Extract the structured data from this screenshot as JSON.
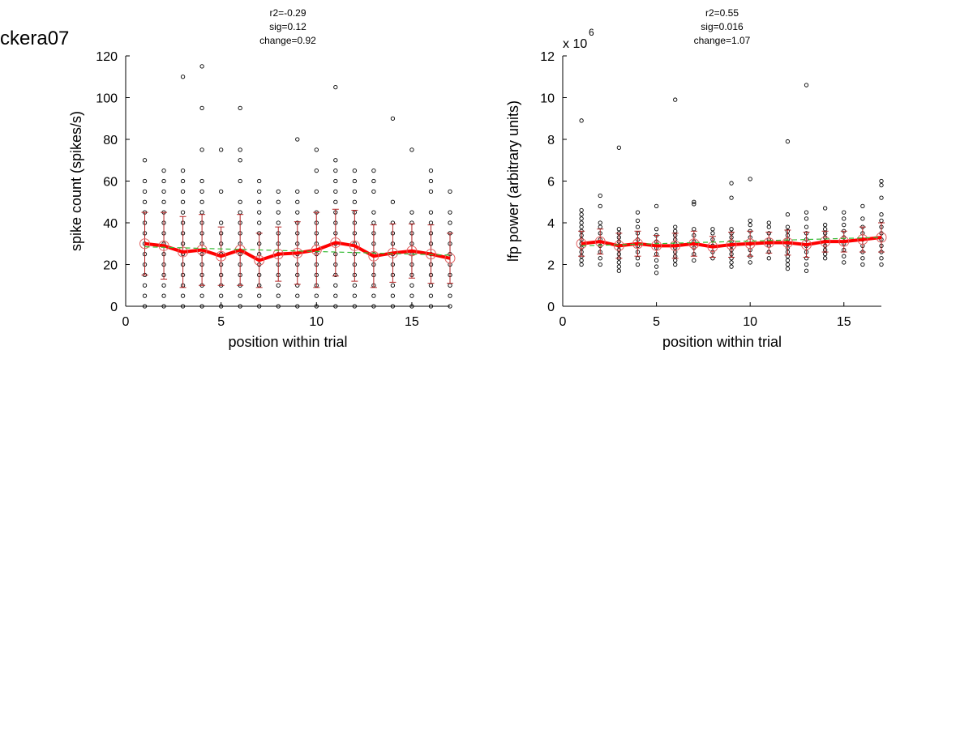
{
  "figure": {
    "title": "ckera07"
  },
  "chart_data": [
    {
      "type": "scatter",
      "stats": [
        "r2=-0.29",
        "sig=0.12",
        "change=0.92"
      ],
      "xlabel": "position within trial",
      "ylabel": "spike count (spikes/s)",
      "xlim": [
        0,
        17
      ],
      "ylim": [
        0,
        120
      ],
      "xticks": [
        0,
        5,
        10,
        15
      ],
      "yticks": [
        0,
        20,
        40,
        60,
        80,
        100,
        120
      ],
      "exponent_label": "",
      "grid": false,
      "colors": {
        "points": "#000000",
        "mean_line": "#ff0000",
        "error_bars": "#b22222",
        "fit": "#33bb33"
      },
      "points": {
        "1": [
          0,
          5,
          10,
          15,
          20,
          25,
          30,
          35,
          40,
          45,
          50,
          55,
          60,
          70
        ],
        "2": [
          0,
          5,
          10,
          15,
          20,
          25,
          30,
          35,
          40,
          45,
          50,
          55,
          60,
          65
        ],
        "3": [
          0,
          5,
          10,
          15,
          20,
          25,
          30,
          35,
          40,
          45,
          50,
          55,
          60,
          65,
          110
        ],
        "4": [
          0,
          5,
          10,
          15,
          20,
          25,
          30,
          35,
          40,
          45,
          50,
          55,
          60,
          75,
          95,
          115
        ],
        "5": [
          0,
          5,
          10,
          15,
          20,
          25,
          30,
          35,
          40,
          55,
          75
        ],
        "6": [
          0,
          5,
          10,
          15,
          20,
          25,
          30,
          35,
          40,
          45,
          50,
          60,
          70,
          75,
          95
        ],
        "7": [
          0,
          5,
          10,
          15,
          20,
          25,
          30,
          35,
          40,
          45,
          50,
          55,
          60
        ],
        "8": [
          0,
          5,
          10,
          15,
          20,
          25,
          30,
          35,
          40,
          45,
          50,
          55
        ],
        "9": [
          0,
          5,
          10,
          15,
          20,
          25,
          30,
          35,
          40,
          45,
          50,
          55,
          80
        ],
        "10": [
          0,
          5,
          10,
          15,
          20,
          25,
          30,
          35,
          40,
          45,
          55,
          65,
          75
        ],
        "11": [
          0,
          5,
          10,
          15,
          20,
          25,
          30,
          35,
          40,
          45,
          50,
          55,
          60,
          65,
          70,
          105
        ],
        "12": [
          0,
          5,
          10,
          15,
          20,
          25,
          30,
          35,
          40,
          45,
          50,
          55,
          60,
          65
        ],
        "13": [
          0,
          5,
          10,
          15,
          20,
          25,
          30,
          35,
          40,
          45,
          55,
          60,
          65
        ],
        "14": [
          0,
          5,
          10,
          15,
          20,
          25,
          30,
          35,
          40,
          50,
          90
        ],
        "15": [
          0,
          5,
          10,
          15,
          20,
          25,
          30,
          35,
          40,
          45,
          75
        ],
        "16": [
          0,
          5,
          10,
          15,
          20,
          25,
          30,
          35,
          40,
          45,
          55,
          60,
          65
        ],
        "17": [
          0,
          5,
          10,
          15,
          20,
          25,
          30,
          35,
          40,
          45,
          55
        ]
      },
      "mean": {
        "x": [
          1,
          2,
          3,
          4,
          5,
          6,
          7,
          8,
          9,
          10,
          11,
          12,
          13,
          14,
          15,
          16,
          17
        ],
        "y": [
          30,
          29,
          26,
          27,
          24,
          27,
          22,
          25,
          25.5,
          27,
          30.5,
          29,
          24,
          25.5,
          26.5,
          25,
          23
        ]
      },
      "error": [
        15,
        16,
        17,
        17,
        14,
        17,
        13,
        13,
        15,
        18,
        16,
        17,
        15,
        14,
        13,
        14,
        12
      ],
      "fit": {
        "x": [
          1,
          17
        ],
        "y": [
          28.5,
          24.5
        ]
      }
    },
    {
      "type": "scatter",
      "stats": [
        "r2=0.55",
        "sig=0.016",
        "change=1.07"
      ],
      "xlabel": "position within trial",
      "ylabel": "lfp power (arbitrary units)",
      "xlim": [
        0,
        17
      ],
      "ylim": [
        0,
        12
      ],
      "xticks": [
        0,
        5,
        10,
        15
      ],
      "yticks": [
        0,
        2,
        4,
        6,
        8,
        10,
        12
      ],
      "exponent_label": "x 10",
      "exponent_power": "6",
      "grid": false,
      "colors": {
        "points": "#000000",
        "mean_line": "#ff0000",
        "error_bars": "#b22222",
        "fit": "#33bb33"
      },
      "points": {
        "1": [
          2.0,
          2.2,
          2.4,
          2.6,
          2.8,
          3.0,
          3.2,
          3.4,
          3.6,
          3.8,
          4.0,
          4.2,
          4.4,
          4.6,
          8.9
        ],
        "2": [
          2.0,
          2.3,
          2.6,
          2.9,
          3.2,
          3.5,
          3.8,
          4.0,
          4.8,
          5.3
        ],
        "3": [
          1.7,
          1.9,
          2.1,
          2.3,
          2.5,
          2.7,
          2.9,
          3.1,
          3.3,
          3.5,
          3.7,
          7.6
        ],
        "4": [
          2.0,
          2.3,
          2.6,
          2.9,
          3.2,
          3.5,
          3.8,
          4.1,
          4.5
        ],
        "5": [
          1.6,
          1.9,
          2.2,
          2.5,
          2.8,
          3.1,
          3.4,
          3.7,
          4.8
        ],
        "6": [
          2.0,
          2.2,
          2.4,
          2.6,
          2.8,
          3.0,
          3.2,
          3.4,
          3.6,
          3.8,
          9.9
        ],
        "7": [
          2.2,
          2.5,
          2.8,
          3.1,
          3.4,
          3.7,
          4.9,
          5.0
        ],
        "8": [
          2.3,
          2.6,
          2.9,
          3.2,
          3.5,
          3.7
        ],
        "9": [
          1.9,
          2.1,
          2.3,
          2.5,
          2.7,
          2.9,
          3.1,
          3.3,
          3.5,
          3.7,
          5.2,
          5.9
        ],
        "10": [
          2.1,
          2.4,
          2.7,
          3.0,
          3.3,
          3.6,
          3.9,
          4.1,
          6.1
        ],
        "11": [
          2.3,
          2.6,
          2.9,
          3.2,
          3.5,
          3.8,
          4.0
        ],
        "12": [
          1.8,
          2.0,
          2.2,
          2.4,
          2.6,
          2.8,
          3.0,
          3.2,
          3.4,
          3.6,
          3.8,
          4.4,
          7.9
        ],
        "13": [
          1.7,
          2.0,
          2.3,
          2.6,
          2.9,
          3.2,
          3.5,
          3.8,
          4.2,
          4.5,
          10.6
        ],
        "14": [
          2.3,
          2.5,
          2.7,
          2.9,
          3.1,
          3.3,
          3.5,
          3.7,
          3.9,
          4.7
        ],
        "15": [
          2.1,
          2.4,
          2.7,
          3.0,
          3.3,
          3.6,
          3.9,
          4.2,
          4.5
        ],
        "16": [
          2.0,
          2.3,
          2.6,
          2.9,
          3.2,
          3.5,
          3.8,
          4.2,
          4.8
        ],
        "17": [
          2.0,
          2.3,
          2.6,
          2.9,
          3.2,
          3.5,
          3.8,
          4.1,
          4.4,
          5.2,
          5.8,
          6.0
        ]
      },
      "mean": {
        "x": [
          1,
          2,
          3,
          4,
          5,
          6,
          7,
          8,
          9,
          10,
          11,
          12,
          13,
          14,
          15,
          16,
          17
        ],
        "y": [
          3.0,
          3.1,
          2.9,
          3.0,
          2.9,
          2.9,
          3.0,
          2.85,
          2.95,
          3.0,
          3.05,
          3.05,
          2.95,
          3.1,
          3.1,
          3.2,
          3.3
        ]
      },
      "error": [
        0.6,
        0.6,
        0.6,
        0.6,
        0.5,
        0.6,
        0.6,
        0.5,
        0.6,
        0.6,
        0.5,
        0.6,
        0.6,
        0.5,
        0.5,
        0.6,
        0.7
      ],
      "fit": {
        "x": [
          1,
          17
        ],
        "y": [
          2.9,
          3.3
        ]
      }
    }
  ]
}
